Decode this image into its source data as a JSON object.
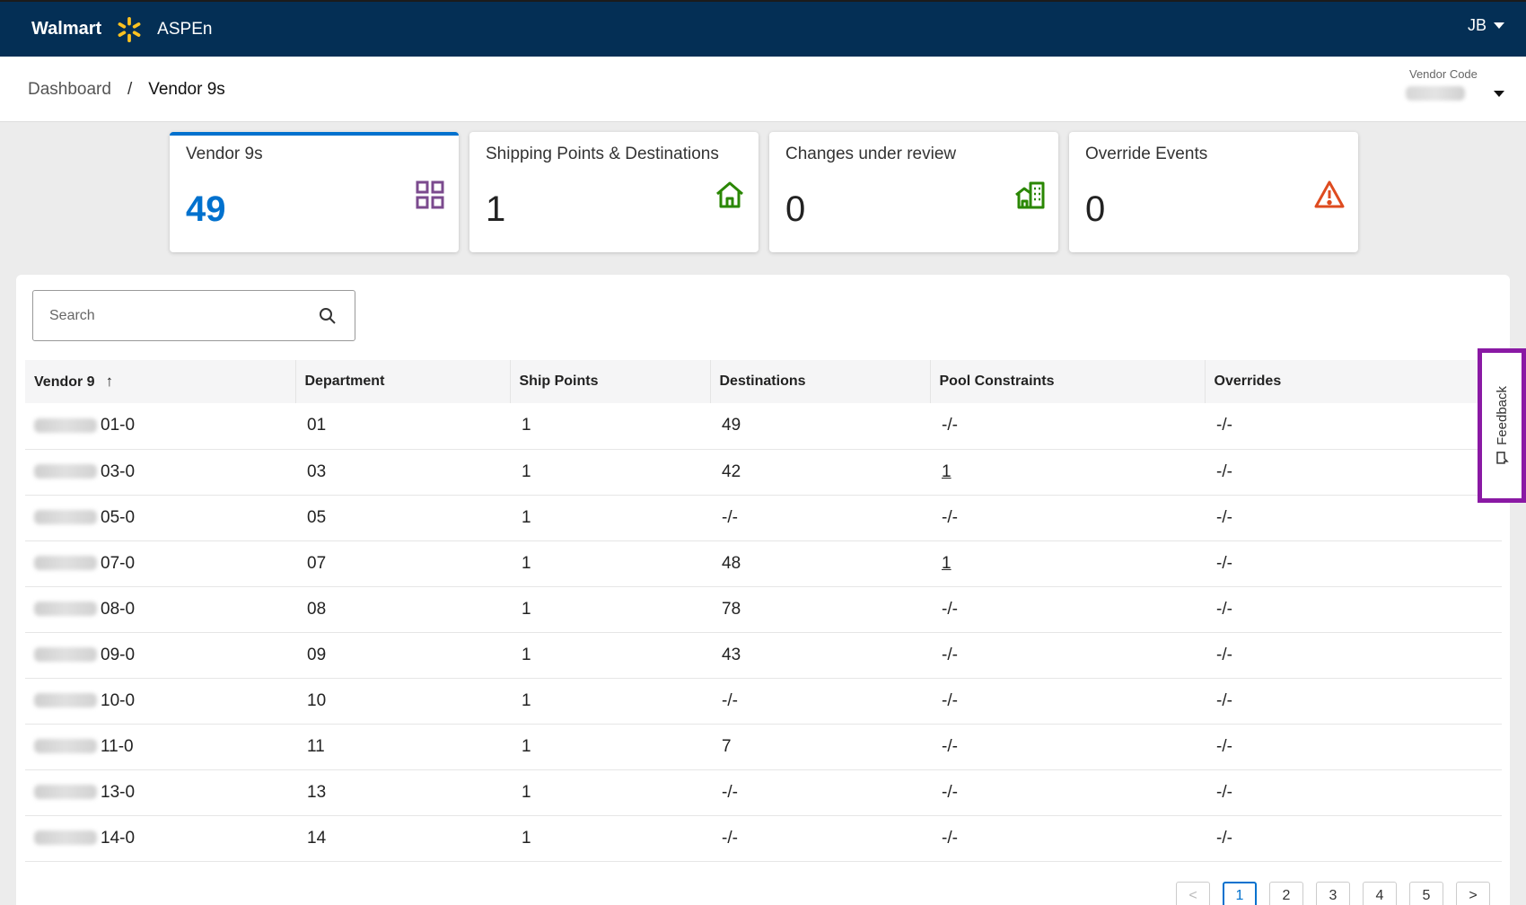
{
  "header": {
    "brand": "Walmart",
    "app": "ASPEn",
    "user_initials": "JB",
    "colors": {
      "bar": "#042f55",
      "spark": "#ffc220"
    }
  },
  "breadcrumb": {
    "home": "Dashboard",
    "separator": "/",
    "current": "Vendor 9s"
  },
  "vendor_code": {
    "label": "Vendor Code"
  },
  "kpis": [
    {
      "title": "Vendor 9s",
      "value": "49",
      "icon": "grid-icon",
      "color": "#7b4a8e"
    },
    {
      "title": "Shipping Points & Destinations",
      "value": "1",
      "icon": "home-icon",
      "color": "#2a8703"
    },
    {
      "title": "Changes under review",
      "value": "0",
      "icon": "building-icon",
      "color": "#2a8703"
    },
    {
      "title": "Override Events",
      "value": "0",
      "icon": "warning-icon",
      "color": "#de4b1f"
    }
  ],
  "search": {
    "placeholder": "Search"
  },
  "table": {
    "columns": [
      "Vendor 9",
      "Department",
      "Ship Points",
      "Destinations",
      "Pool Constraints",
      "Overrides"
    ],
    "sort_indicator": "↑",
    "rows": [
      {
        "vendor": "01-0",
        "dept": "01",
        "ship": "1",
        "dest": "49",
        "pool": "-/-",
        "over": "-/-"
      },
      {
        "vendor": "03-0",
        "dept": "03",
        "ship": "1",
        "dest": "42",
        "pool": "1",
        "over": "-/-"
      },
      {
        "vendor": "05-0",
        "dept": "05",
        "ship": "1",
        "dest": "-/-",
        "pool": "-/-",
        "over": "-/-"
      },
      {
        "vendor": "07-0",
        "dept": "07",
        "ship": "1",
        "dest": "48",
        "pool": "1",
        "over": "-/-"
      },
      {
        "vendor": "08-0",
        "dept": "08",
        "ship": "1",
        "dest": "78",
        "pool": "-/-",
        "over": "-/-"
      },
      {
        "vendor": "09-0",
        "dept": "09",
        "ship": "1",
        "dest": "43",
        "pool": "-/-",
        "over": "-/-"
      },
      {
        "vendor": "10-0",
        "dept": "10",
        "ship": "1",
        "dest": "-/-",
        "pool": "-/-",
        "over": "-/-"
      },
      {
        "vendor": "11-0",
        "dept": "11",
        "ship": "1",
        "dest": "7",
        "pool": "-/-",
        "over": "-/-"
      },
      {
        "vendor": "13-0",
        "dept": "13",
        "ship": "1",
        "dest": "-/-",
        "pool": "-/-",
        "over": "-/-"
      },
      {
        "vendor": "14-0",
        "dept": "14",
        "ship": "1",
        "dest": "-/-",
        "pool": "-/-",
        "over": "-/-"
      }
    ]
  },
  "pagination": {
    "prev": "<",
    "next": ">",
    "pages": [
      "1",
      "2",
      "3",
      "4",
      "5"
    ],
    "current": "1"
  },
  "feedback": {
    "label": "Feedback",
    "highlight_color": "#8a19a4"
  }
}
